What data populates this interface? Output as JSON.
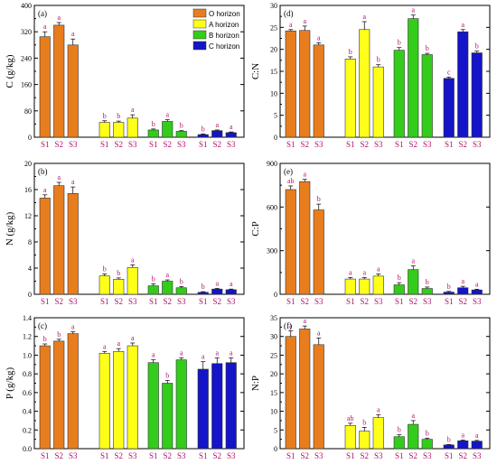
{
  "colors": {
    "O horizon": "#e87d1e",
    "A horizon": "#ffff1a",
    "B horizon": "#33cc1a",
    "C horizon": "#1414c8",
    "category_label": "#b0106a",
    "letter_label": "#b0106a"
  },
  "legend": {
    "placement": "top-right of panel (a)",
    "items": [
      "O horizon",
      "A horizon",
      "B horizon",
      "C horizon"
    ]
  },
  "chart_data": [
    {
      "panel": "(a)",
      "type": "bar",
      "ylabel": "C (g/kg)",
      "ylim": [
        0,
        400
      ],
      "yticks": [
        "0",
        "80",
        "160",
        "240",
        "320",
        "400"
      ],
      "groups": [
        "O horizon",
        "A horizon",
        "B horizon",
        "C horizon"
      ],
      "categories": [
        "S1",
        "S2",
        "S3"
      ],
      "series": [
        {
          "name": "O horizon",
          "values": [
            305,
            340,
            280
          ],
          "errors": [
            15,
            8,
            18
          ],
          "letters": [
            "a",
            "a",
            "a"
          ]
        },
        {
          "name": "A horizon",
          "values": [
            45,
            45,
            58
          ],
          "errors": [
            5,
            4,
            10
          ],
          "letters": [
            "b",
            "b",
            "a"
          ]
        },
        {
          "name": "B horizon",
          "values": [
            22,
            48,
            18
          ],
          "errors": [
            3,
            5,
            2
          ],
          "letters": [
            "b",
            "a",
            "b"
          ]
        },
        {
          "name": "C horizon",
          "values": [
            8,
            20,
            14
          ],
          "errors": [
            2,
            2,
            2
          ],
          "letters": [
            "b",
            "a",
            "a"
          ]
        }
      ]
    },
    {
      "panel": "(b)",
      "type": "bar",
      "ylabel": "N (g/kg)",
      "ylim": [
        0,
        20
      ],
      "yticks": [
        "0",
        "4",
        "8",
        "12",
        "16",
        "20"
      ],
      "groups": [
        "O horizon",
        "A horizon",
        "B horizon",
        "C horizon"
      ],
      "categories": [
        "S1",
        "S2",
        "S3"
      ],
      "series": [
        {
          "name": "O horizon",
          "values": [
            14.7,
            16.6,
            15.4
          ],
          "errors": [
            0.5,
            0.5,
            1.0
          ],
          "letters": [
            "a",
            "a",
            "a"
          ]
        },
        {
          "name": "A horizon",
          "values": [
            2.8,
            2.3,
            4.1
          ],
          "errors": [
            0.3,
            0.2,
            0.4
          ],
          "letters": [
            "b",
            "b",
            "a"
          ]
        },
        {
          "name": "B horizon",
          "values": [
            1.3,
            2.0,
            1.0
          ],
          "errors": [
            0.3,
            0.2,
            0.2
          ],
          "letters": [
            "b",
            "a",
            "b"
          ]
        },
        {
          "name": "C horizon",
          "values": [
            0.3,
            0.8,
            0.7
          ],
          "errors": [
            0.1,
            0.1,
            0.1
          ],
          "letters": [
            "b",
            "a",
            "a"
          ]
        }
      ]
    },
    {
      "panel": "(c)",
      "type": "bar",
      "ylabel": "P (g/kg)",
      "ylim": [
        0,
        1.4
      ],
      "yticks": [
        "0.0",
        "0.2",
        "0.4",
        "0.6",
        "0.8",
        "1.0",
        "1.2",
        "1.4"
      ],
      "groups": [
        "O horizon",
        "A horizon",
        "B horizon",
        "C horizon"
      ],
      "categories": [
        "S1",
        "S2",
        "S3"
      ],
      "series": [
        {
          "name": "O horizon",
          "values": [
            1.1,
            1.15,
            1.23
          ],
          "errors": [
            0.02,
            0.02,
            0.02
          ],
          "letters": [
            "b",
            "b",
            "a"
          ]
        },
        {
          "name": "A horizon",
          "values": [
            1.02,
            1.04,
            1.1
          ],
          "errors": [
            0.02,
            0.03,
            0.03
          ],
          "letters": [
            "a",
            "a",
            "a"
          ]
        },
        {
          "name": "B horizon",
          "values": [
            0.92,
            0.7,
            0.95
          ],
          "errors": [
            0.03,
            0.03,
            0.02
          ],
          "letters": [
            "a",
            "b",
            "a"
          ]
        },
        {
          "name": "C horizon",
          "values": [
            0.85,
            0.91,
            0.92
          ],
          "errors": [
            0.08,
            0.06,
            0.05
          ],
          "letters": [
            "a",
            "a",
            "a"
          ]
        }
      ]
    },
    {
      "panel": "(d)",
      "type": "bar",
      "ylabel": "C:N",
      "ylim": [
        0,
        30
      ],
      "yticks": [
        "0",
        "5",
        "10",
        "15",
        "20",
        "25",
        "30"
      ],
      "groups": [
        "O horizon",
        "A horizon",
        "B horizon",
        "C horizon"
      ],
      "categories": [
        "S1",
        "S2",
        "S3"
      ],
      "series": [
        {
          "name": "O horizon",
          "values": [
            24.2,
            24.3,
            21.0
          ],
          "errors": [
            0.3,
            1.0,
            0.5
          ],
          "letters": [
            "a",
            "a",
            "a"
          ]
        },
        {
          "name": "A horizon",
          "values": [
            17.8,
            24.5,
            16.0
          ],
          "errors": [
            0.5,
            1.8,
            0.5
          ],
          "letters": [
            "b",
            "a",
            "b"
          ]
        },
        {
          "name": "B horizon",
          "values": [
            19.8,
            27.0,
            18.8
          ],
          "errors": [
            0.6,
            0.8,
            0.3
          ],
          "letters": [
            "b",
            "a",
            "b"
          ]
        },
        {
          "name": "C horizon",
          "values": [
            13.4,
            24.0,
            19.2
          ],
          "errors": [
            0.3,
            0.5,
            0.4
          ],
          "letters": [
            "c",
            "a",
            "b"
          ]
        }
      ]
    },
    {
      "panel": "(e)",
      "type": "bar",
      "ylabel": "C:P",
      "ylim": [
        0,
        900
      ],
      "yticks": [
        "0",
        "300",
        "600",
        "900"
      ],
      "groups": [
        "O horizon",
        "A horizon",
        "B horizon",
        "C horizon"
      ],
      "categories": [
        "S1",
        "S2",
        "S3"
      ],
      "series": [
        {
          "name": "O horizon",
          "values": [
            720,
            775,
            580
          ],
          "errors": [
            25,
            15,
            40
          ],
          "letters": [
            "ab",
            "a",
            "b"
          ]
        },
        {
          "name": "A horizon",
          "values": [
            105,
            105,
            125
          ],
          "errors": [
            10,
            10,
            15
          ],
          "letters": [
            "a",
            "a",
            "a"
          ]
        },
        {
          "name": "B horizon",
          "values": [
            65,
            170,
            40
          ],
          "errors": [
            15,
            25,
            10
          ],
          "letters": [
            "b",
            "a",
            "b"
          ]
        },
        {
          "name": "C horizon",
          "values": [
            15,
            45,
            30
          ],
          "errors": [
            5,
            10,
            5
          ],
          "letters": [
            "b",
            "a",
            "a"
          ]
        }
      ]
    },
    {
      "panel": "(f)",
      "type": "bar",
      "ylabel": "N:P",
      "ylim": [
        0,
        35
      ],
      "yticks": [
        "0",
        "5",
        "10",
        "15",
        "20",
        "25",
        "30",
        "35"
      ],
      "groups": [
        "O horizon",
        "A horizon",
        "B horizon",
        "C horizon"
      ],
      "categories": [
        "S1",
        "S2",
        "S3"
      ],
      "series": [
        {
          "name": "O horizon",
          "values": [
            30.0,
            32.0,
            27.8
          ],
          "errors": [
            1.5,
            0.8,
            1.8
          ],
          "letters": [
            "a",
            "a",
            "a"
          ]
        },
        {
          "name": "A horizon",
          "values": [
            6.2,
            4.7,
            8.3
          ],
          "errors": [
            0.6,
            1.0,
            0.8
          ],
          "letters": [
            "ab",
            "b",
            "a"
          ]
        },
        {
          "name": "B horizon",
          "values": [
            3.2,
            6.5,
            2.5
          ],
          "errors": [
            0.5,
            1.0,
            0.3
          ],
          "letters": [
            "b",
            "a",
            "b"
          ]
        },
        {
          "name": "C horizon",
          "values": [
            1.0,
            2.1,
            2.0
          ],
          "errors": [
            0.1,
            0.2,
            0.2
          ],
          "letters": [
            "b",
            "a",
            "a"
          ]
        }
      ]
    }
  ]
}
